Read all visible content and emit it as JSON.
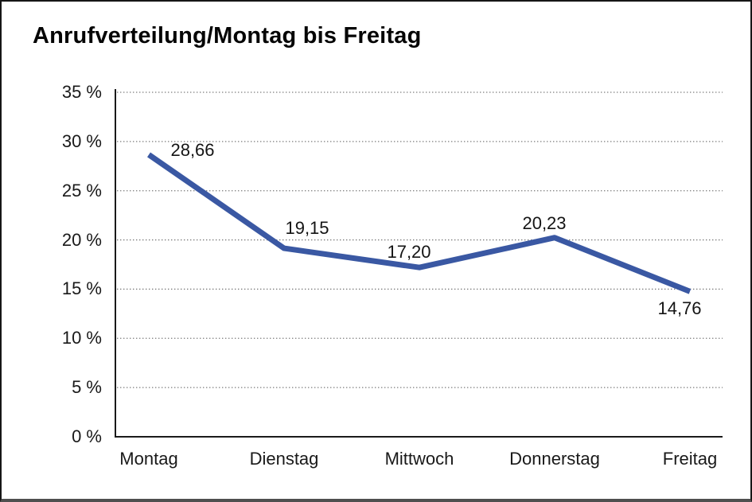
{
  "window": {
    "background": "#ffffff",
    "border_color": "#161616",
    "bottom_border_color": "#4f4f4f"
  },
  "chart_data": {
    "type": "line",
    "title": "Anrufverteilung/Montag bis Freitag",
    "categories": [
      "Montag",
      "Dienstag",
      "Mittwoch",
      "Donnerstag",
      "Freitag"
    ],
    "series": [
      {
        "name": "Anrufverteilung",
        "values": [
          28.66,
          19.15,
          17.2,
          20.23,
          14.76
        ],
        "point_labels": [
          "28,66",
          "19,15",
          "17,20",
          "20,23",
          "14,76"
        ],
        "color": "#3A58A3"
      }
    ],
    "xlabel": "",
    "ylabel": "",
    "ylim": [
      0,
      35
    ],
    "ytick_step": 5,
    "ytick_labels": [
      "0 %",
      "5 %",
      "10 %",
      "15 %",
      "20 %",
      "25 %",
      "30 %",
      "35 %"
    ],
    "yunit": "%",
    "grid": "horizontal-dotted",
    "gridline_color": "#7a7a7a",
    "axis_color": "#1a1a1a",
    "legend": "none"
  }
}
